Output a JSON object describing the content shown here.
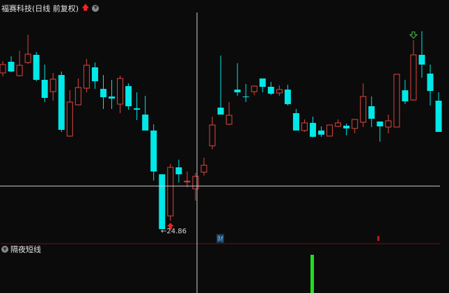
{
  "header": {
    "title": "福赛科技(日线 前复权)",
    "up_arrow_icon": "red-up-arrow",
    "menu_icon": "chevron-down-circle"
  },
  "indicator_panel": {
    "title": "隔夜短线",
    "toggle_icon": "chevron-down-circle",
    "signal_bar_color": "#22dd22"
  },
  "annotations": {
    "low_price_label": "←24.86",
    "finance_marker": "财"
  },
  "colors": {
    "up": "#e0453f",
    "down": "#00e8e8",
    "background": "#0b0b0b",
    "crosshair": "#d0d0d0",
    "divider": "#6a1010"
  },
  "chart_data": {
    "type": "candlestick",
    "title": "福赛科技(日线 前复权)",
    "low_marker": 24.86,
    "fields": [
      "open",
      "high",
      "low",
      "close"
    ],
    "candles": [
      [
        36.11,
        36.96,
        35.86,
        36.71
      ],
      [
        36.91,
        37.31,
        36.16,
        36.21
      ],
      [
        35.91,
        37.71,
        35.86,
        36.66
      ],
      [
        36.86,
        38.86,
        36.76,
        37.46
      ],
      [
        37.41,
        37.61,
        35.51,
        35.61
      ],
      [
        35.61,
        36.71,
        34.01,
        34.31
      ],
      [
        34.76,
        36.11,
        34.11,
        35.66
      ],
      [
        35.96,
        36.21,
        31.86,
        32.01
      ],
      [
        31.56,
        34.86,
        31.51,
        34.01
      ],
      [
        33.81,
        35.71,
        33.76,
        35.06
      ],
      [
        35.01,
        37.11,
        34.71,
        36.66
      ],
      [
        36.51,
        36.86,
        34.96,
        35.51
      ],
      [
        34.96,
        35.96,
        33.51,
        34.36
      ],
      [
        34.41,
        35.61,
        33.51,
        34.26
      ],
      [
        33.86,
        35.91,
        33.21,
        35.71
      ],
      [
        35.16,
        35.36,
        33.46,
        33.71
      ],
      [
        33.56,
        34.71,
        32.71,
        33.46
      ],
      [
        33.11,
        34.46,
        31.96,
        31.96
      ],
      [
        31.96,
        32.41,
        28.36,
        29.01
      ],
      [
        28.81,
        28.81,
        24.86,
        24.86
      ],
      [
        25.81,
        29.56,
        25.46,
        29.31
      ],
      [
        29.31,
        29.86,
        28.21,
        28.81
      ],
      [
        28.26,
        29.01,
        27.86,
        28.31
      ],
      [
        27.76,
        28.91,
        26.91,
        28.66
      ],
      [
        28.96,
        30.01,
        28.71,
        29.46
      ],
      [
        30.86,
        32.96,
        30.61,
        32.36
      ],
      [
        33.61,
        37.36,
        33.11,
        33.11
      ],
      [
        32.41,
        34.01,
        32.36,
        33.06
      ],
      [
        34.91,
        36.81,
        34.46,
        34.71
      ],
      [
        34.41,
        35.31,
        34.01,
        34.36
      ],
      [
        34.76,
        35.21,
        34.51,
        35.16
      ],
      [
        35.71,
        35.71,
        34.71,
        35.11
      ],
      [
        35.11,
        35.46,
        34.51,
        34.61
      ],
      [
        34.66,
        35.21,
        34.46,
        34.91
      ],
      [
        34.91,
        35.26,
        33.76,
        33.86
      ],
      [
        33.21,
        33.51,
        31.96,
        31.96
      ],
      [
        31.96,
        32.76,
        31.86,
        32.51
      ],
      [
        32.51,
        32.96,
        31.46,
        31.51
      ],
      [
        31.96,
        32.26,
        31.51,
        31.66
      ],
      [
        31.56,
        32.36,
        31.56,
        32.36
      ],
      [
        32.26,
        32.76,
        32.21,
        32.51
      ],
      [
        32.31,
        32.46,
        31.61,
        32.11
      ],
      [
        32.11,
        32.76,
        31.76,
        32.76
      ],
      [
        32.56,
        35.36,
        32.21,
        34.41
      ],
      [
        33.71,
        34.41,
        32.21,
        32.81
      ],
      [
        32.61,
        32.61,
        31.16,
        32.26
      ],
      [
        32.21,
        33.11,
        31.76,
        32.66
      ],
      [
        32.21,
        36.01,
        32.21,
        36.01
      ],
      [
        34.86,
        35.61,
        33.86,
        34.06
      ],
      [
        34.16,
        38.46,
        34.11,
        37.41
      ],
      [
        37.41,
        39.11,
        35.76,
        36.71
      ],
      [
        36.06,
        36.71,
        33.76,
        34.81
      ],
      [
        34.11,
        34.71,
        31.86,
        31.86
      ]
    ],
    "buy_signal_candle_index": 20,
    "sell_signal_candle_index": 49,
    "indicator_signal_bars": [
      {
        "candle_index": 37,
        "color": "green"
      }
    ]
  }
}
